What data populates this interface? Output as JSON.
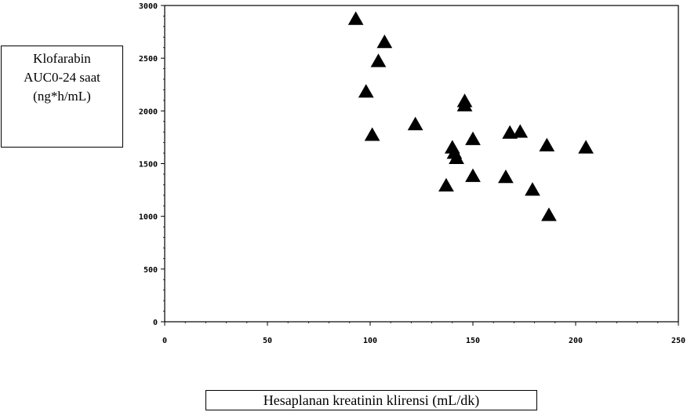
{
  "chart_data": {
    "type": "scatter",
    "ylabel_lines": [
      "Klofarabin",
      "AUC0-24 saat",
      "(ng*h/mL)"
    ],
    "xlabel": "Hesaplanan kreatinin klirensi (mL/dk)",
    "xlim": [
      0,
      250
    ],
    "ylim": [
      0,
      3000
    ],
    "xticks": [
      0,
      50,
      100,
      150,
      200,
      250
    ],
    "yticks": [
      0,
      500,
      1000,
      1500,
      2000,
      2500,
      3000
    ],
    "marker": "triangle",
    "marker_color": "#000000",
    "points": [
      {
        "x": 93,
        "y": 2870
      },
      {
        "x": 107,
        "y": 2650
      },
      {
        "x": 104,
        "y": 2470
      },
      {
        "x": 98,
        "y": 2180
      },
      {
        "x": 146,
        "y": 2090
      },
      {
        "x": 146,
        "y": 2050
      },
      {
        "x": 101,
        "y": 1770
      },
      {
        "x": 122,
        "y": 1870
      },
      {
        "x": 150,
        "y": 1730
      },
      {
        "x": 168,
        "y": 1790
      },
      {
        "x": 173,
        "y": 1800
      },
      {
        "x": 186,
        "y": 1670
      },
      {
        "x": 205,
        "y": 1650
      },
      {
        "x": 140,
        "y": 1650
      },
      {
        "x": 141,
        "y": 1600
      },
      {
        "x": 142,
        "y": 1550
      },
      {
        "x": 137,
        "y": 1290
      },
      {
        "x": 150,
        "y": 1380
      },
      {
        "x": 166,
        "y": 1370
      },
      {
        "x": 179,
        "y": 1250
      },
      {
        "x": 187,
        "y": 1010
      }
    ]
  }
}
